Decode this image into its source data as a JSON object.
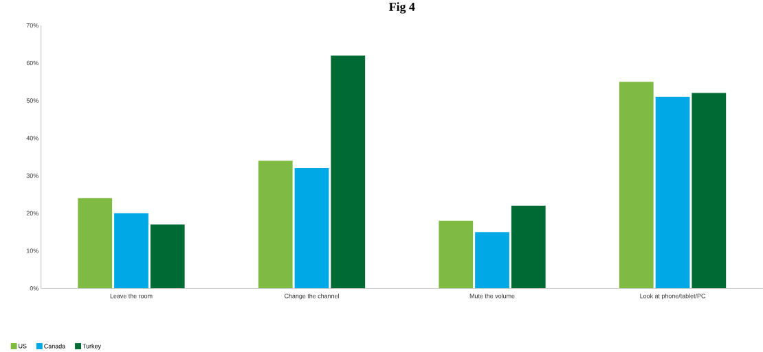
{
  "chart_data": {
    "type": "bar",
    "title": "Fig 4",
    "categories": [
      "Leave the room",
      "Change the channel",
      "Mute the volume",
      "Look at phone/tablet/PC"
    ],
    "series": [
      {
        "name": "US",
        "color": "#7fba42",
        "values": [
          24,
          34,
          18,
          55
        ]
      },
      {
        "name": "Canada",
        "color": "#00a9e6",
        "values": [
          20,
          32,
          15,
          51
        ]
      },
      {
        "name": "Turkey",
        "color": "#006a35",
        "values": [
          17,
          62,
          22,
          52
        ]
      }
    ],
    "ylim": [
      0,
      70
    ],
    "yticks": [
      {
        "value": 0,
        "label": "0%"
      },
      {
        "value": 10,
        "label": "10%"
      },
      {
        "value": 20,
        "label": "20%"
      },
      {
        "value": 30,
        "label": "30%"
      },
      {
        "value": 40,
        "label": "40%"
      },
      {
        "value": 50,
        "label": "50%"
      },
      {
        "value": 60,
        "label": "60%"
      },
      {
        "value": 70,
        "label": "70%"
      }
    ],
    "grid": false,
    "legend": "bottom left"
  }
}
